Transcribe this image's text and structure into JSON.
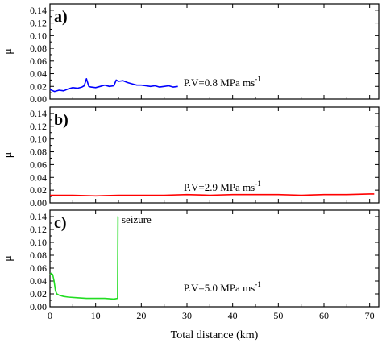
{
  "chart_data": [
    {
      "type": "line",
      "panel_label": "a)",
      "ylabel": "μ",
      "ylim": [
        0,
        0.15
      ],
      "yticks": [
        "0.00",
        "0.02",
        "0.04",
        "0.06",
        "0.08",
        "0.10",
        "0.12",
        "0.14"
      ],
      "xlim": [
        0,
        72
      ],
      "annotation": {
        "text": "P.V=0.8 MPa ms",
        "sup": "-1"
      },
      "series": [
        {
          "color": "#0000ff",
          "x": [
            0,
            1,
            2,
            3,
            4,
            5,
            6,
            7,
            7.5,
            8,
            8.5,
            9,
            10,
            11,
            12,
            13,
            14,
            14.5,
            15,
            16,
            17,
            18,
            19,
            20,
            21,
            22,
            23,
            24,
            25,
            26,
            27,
            28
          ],
          "y": [
            0.015,
            0.012,
            0.014,
            0.013,
            0.016,
            0.018,
            0.017,
            0.019,
            0.021,
            0.032,
            0.02,
            0.019,
            0.018,
            0.02,
            0.022,
            0.02,
            0.021,
            0.03,
            0.028,
            0.029,
            0.026,
            0.024,
            0.022,
            0.022,
            0.021,
            0.02,
            0.021,
            0.019,
            0.02,
            0.021,
            0.019,
            0.02
          ]
        }
      ]
    },
    {
      "type": "line",
      "panel_label": "b)",
      "ylabel": "μ",
      "ylim": [
        0,
        0.15
      ],
      "yticks": [
        "0.00",
        "0.02",
        "0.04",
        "0.06",
        "0.08",
        "0.10",
        "0.12",
        "0.14"
      ],
      "xlim": [
        0,
        72
      ],
      "annotation": {
        "text": "P.V=2.9 MPa ms",
        "sup": "-1"
      },
      "series": [
        {
          "color": "#ff0000",
          "x": [
            0,
            5,
            10,
            15,
            20,
            25,
            30,
            35,
            40,
            45,
            50,
            55,
            60,
            65,
            70,
            71
          ],
          "y": [
            0.012,
            0.012,
            0.011,
            0.012,
            0.012,
            0.012,
            0.013,
            0.012,
            0.013,
            0.013,
            0.013,
            0.012,
            0.013,
            0.013,
            0.014,
            0.014
          ]
        }
      ]
    },
    {
      "type": "line",
      "panel_label": "c)",
      "ylabel": "μ",
      "ylim": [
        0,
        0.15
      ],
      "yticks": [
        "0.00",
        "0.02",
        "0.04",
        "0.06",
        "0.08",
        "0.10",
        "0.12",
        "0.14"
      ],
      "xlim": [
        0,
        72
      ],
      "xticks": [
        "0",
        "10",
        "20",
        "30",
        "40",
        "50",
        "60",
        "70"
      ],
      "xlabel": "Total distance (km)",
      "annotation": {
        "text": "P.V=5.0 MPa ms",
        "sup": "-1"
      },
      "seizure_label": "seizure",
      "series": [
        {
          "color": "#22dd22",
          "x": [
            0,
            0.3,
            0.6,
            0.9,
            1.2,
            1.5,
            2,
            3,
            4,
            6,
            8,
            10,
            12,
            14,
            14.8,
            14.9,
            15.0
          ],
          "y": [
            0.05,
            0.052,
            0.05,
            0.04,
            0.025,
            0.02,
            0.018,
            0.016,
            0.015,
            0.014,
            0.013,
            0.013,
            0.013,
            0.012,
            0.013,
            0.14,
            0.14
          ]
        }
      ]
    }
  ]
}
